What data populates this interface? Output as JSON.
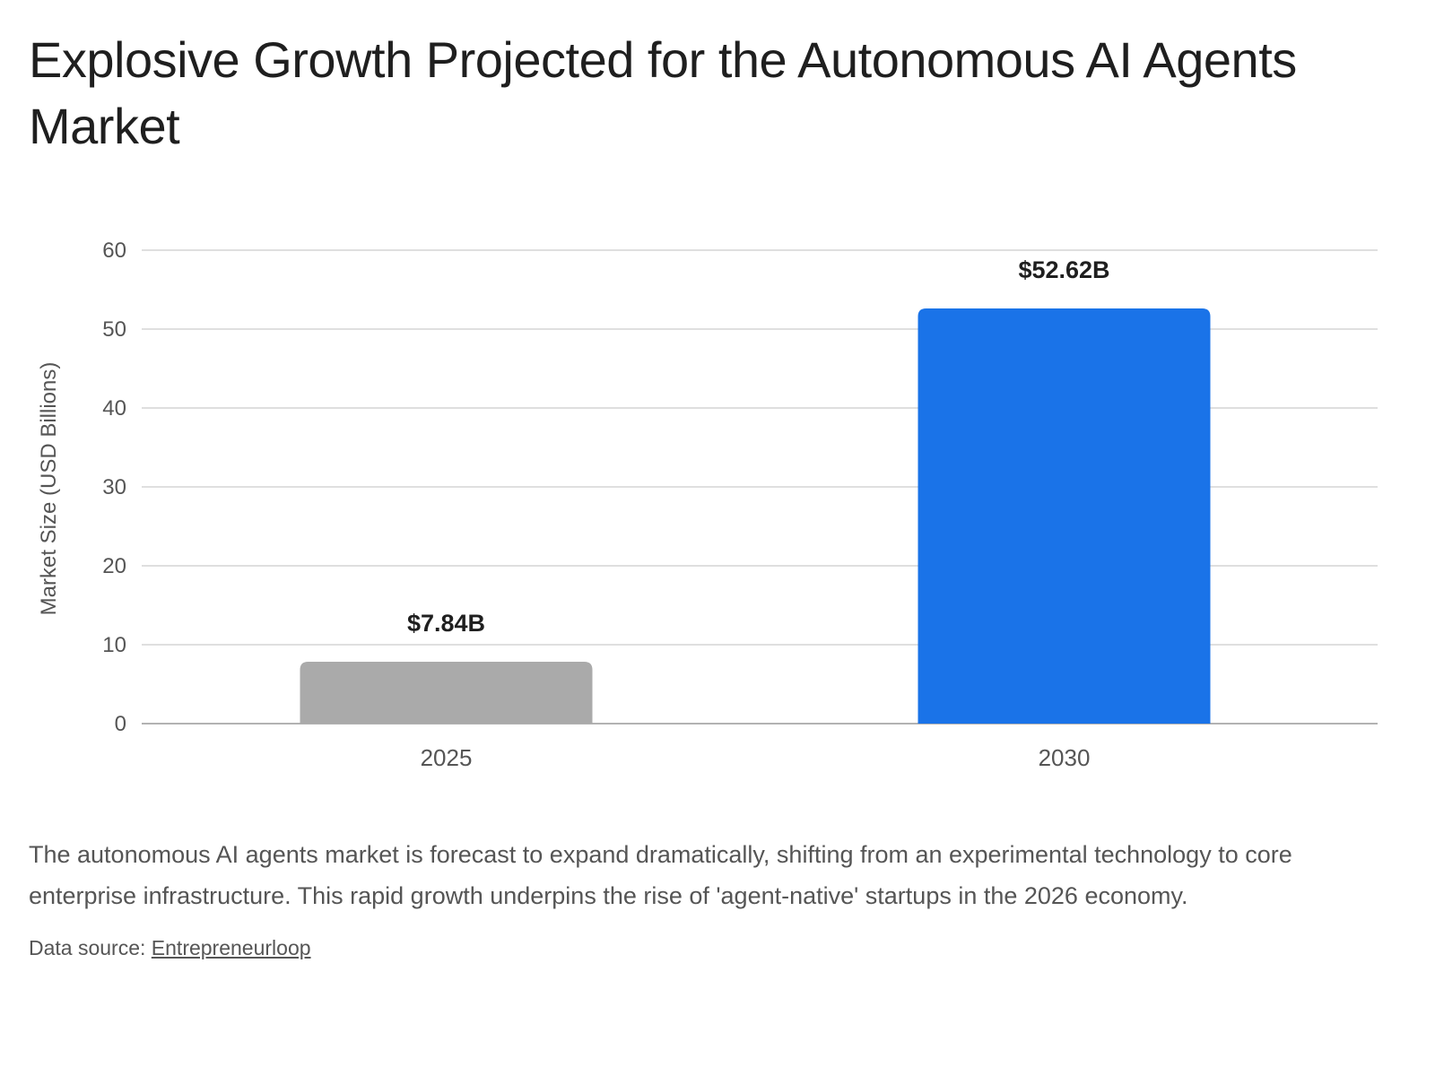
{
  "title": "Explosive Growth Projected for the Autonomous AI Agents Market",
  "description": "The autonomous AI agents market is forecast to expand dramatically, shifting from an experimental technology to core enterprise infrastructure. This rapid growth underpins the rise of 'agent-native' startups in the 2026 economy.",
  "source": {
    "prefix": "Data source: ",
    "link_text": "Entrepreneurloop"
  },
  "colors": {
    "bar_2025": "#aaaaaa",
    "bar_2030": "#1a73e8",
    "gridline": "#cccccc",
    "baseline": "#999999"
  },
  "chart_data": {
    "type": "bar",
    "categories": [
      "2025",
      "2030"
    ],
    "values": [
      7.84,
      52.62
    ],
    "data_labels": [
      "$7.84B",
      "$52.62B"
    ],
    "title": "Explosive Growth Projected for the Autonomous AI Agents Market",
    "xlabel": "",
    "ylabel": "Market Size (USD Billions)",
    "ylim": [
      0,
      60
    ],
    "yticks": [
      0,
      10,
      20,
      30,
      40,
      50,
      60
    ],
    "grid": true,
    "legend": "none"
  }
}
